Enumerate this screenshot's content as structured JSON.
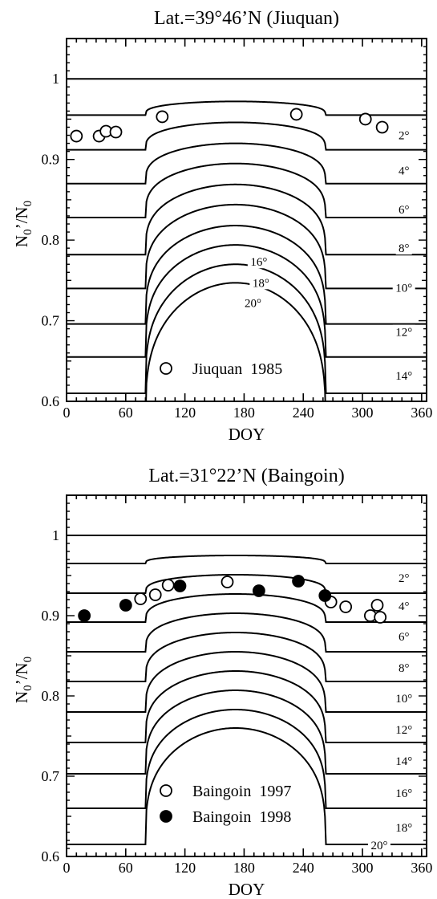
{
  "chart_data": [
    {
      "type": "line",
      "title": "Lat.=39°46’N  (Jiuquan)",
      "xlabel": "DOY",
      "ylabel": "N0’/N0",
      "ylabel_main": "N",
      "ylabel_sub1": "0",
      "ylabel_mid": "’/N",
      "ylabel_sub2": "0",
      "xlim": [
        0,
        365
      ],
      "ylim": [
        0.6,
        1.05
      ],
      "xticks": [
        0,
        60,
        120,
        180,
        240,
        300,
        360
      ],
      "xtick_labels": [
        "0",
        "60",
        "120",
        "180",
        "240",
        "300",
        "360"
      ],
      "yticks": [
        0.6,
        0.7,
        0.8,
        0.9,
        1
      ],
      "ytick_labels": [
        "0.6",
        "0.7",
        "0.8",
        "0.9",
        "1"
      ],
      "reference_line": 1.0,
      "curve_min_level": 0.6,
      "curve_params": [
        {
          "dip": 2,
          "plateau": 0.972,
          "winter": 0.955
        },
        {
          "dip": 4,
          "plateau": 0.946,
          "winter": 0.912
        },
        {
          "dip": 6,
          "plateau": 0.92,
          "winter": 0.87
        },
        {
          "dip": 8,
          "plateau": 0.895,
          "winter": 0.828
        },
        {
          "dip": 10,
          "plateau": 0.869,
          "winter": 0.782
        },
        {
          "dip": 12,
          "plateau": 0.844,
          "winter": 0.74
        },
        {
          "dip": 14,
          "plateau": 0.818,
          "winter": 0.696
        },
        {
          "dip": 16,
          "plateau": 0.794,
          "winter": 0.655
        },
        {
          "dip": 18,
          "plateau": 0.77,
          "winter": 0.61
        },
        {
          "dip": 20,
          "plateau": 0.747,
          "winter": 0.57
        }
      ],
      "curve_labels": [
        {
          "text": "2°",
          "x": 342,
          "y": 0.93
        },
        {
          "text": "4°",
          "x": 342,
          "y": 0.886
        },
        {
          "text": "6°",
          "x": 342,
          "y": 0.838
        },
        {
          "text": "8°",
          "x": 342,
          "y": 0.79
        },
        {
          "text": "10°",
          "x": 342,
          "y": 0.741
        },
        {
          "text": "12°",
          "x": 342,
          "y": 0.686
        },
        {
          "text": "14°",
          "x": 342,
          "y": 0.632
        },
        {
          "text": "16°",
          "x": 195,
          "y": 0.773
        },
        {
          "text": "18°",
          "x": 197,
          "y": 0.747
        },
        {
          "text": "20°",
          "x": 189,
          "y": 0.722
        }
      ],
      "series": [
        {
          "name": "Jiuquan  1985",
          "marker": "open-circle",
          "x": [
            10,
            33,
            40,
            50,
            97,
            233,
            303,
            320
          ],
          "y": [
            0.929,
            0.929,
            0.935,
            0.934,
            0.953,
            0.956,
            0.95,
            0.94
          ]
        }
      ],
      "legend": {
        "placement": "bottom-center"
      }
    },
    {
      "type": "line",
      "title": "Lat.=31°22’N  (Baingoin)",
      "xlabel": "DOY",
      "ylabel": "N0’/N0",
      "ylabel_main": "N",
      "ylabel_sub1": "0",
      "ylabel_mid": "’/N",
      "ylabel_sub2": "0",
      "xlim": [
        0,
        365
      ],
      "ylim": [
        0.6,
        1.05
      ],
      "xticks": [
        0,
        60,
        120,
        180,
        240,
        300,
        360
      ],
      "xtick_labels": [
        "0",
        "60",
        "120",
        "180",
        "240",
        "300",
        "360"
      ],
      "yticks": [
        0.6,
        0.7,
        0.8,
        0.9,
        1
      ],
      "ytick_labels": [
        "0.6",
        "0.7",
        "0.8",
        "0.9",
        "1"
      ],
      "reference_line": 1.0,
      "curve_min_level": 0.6,
      "curve_params": [
        {
          "dip": 2,
          "plateau": 0.975,
          "winter": 0.965
        },
        {
          "dip": 4,
          "plateau": 0.951,
          "winter": 0.928
        },
        {
          "dip": 6,
          "plateau": 0.927,
          "winter": 0.892
        },
        {
          "dip": 8,
          "plateau": 0.903,
          "winter": 0.855
        },
        {
          "dip": 10,
          "plateau": 0.879,
          "winter": 0.818
        },
        {
          "dip": 12,
          "plateau": 0.855,
          "winter": 0.78
        },
        {
          "dip": 14,
          "plateau": 0.831,
          "winter": 0.742
        },
        {
          "dip": 16,
          "plateau": 0.807,
          "winter": 0.703
        },
        {
          "dip": 18,
          "plateau": 0.783,
          "winter": 0.66
        },
        {
          "dip": 20,
          "plateau": 0.76,
          "winter": 0.615
        }
      ],
      "curve_labels": [
        {
          "text": "2°",
          "x": 342,
          "y": 0.947
        },
        {
          "text": "4°",
          "x": 342,
          "y": 0.912
        },
        {
          "text": "6°",
          "x": 342,
          "y": 0.874
        },
        {
          "text": "8°",
          "x": 342,
          "y": 0.835
        },
        {
          "text": "10°",
          "x": 342,
          "y": 0.797
        },
        {
          "text": "12°",
          "x": 342,
          "y": 0.758
        },
        {
          "text": "14°",
          "x": 342,
          "y": 0.719
        },
        {
          "text": "16°",
          "x": 342,
          "y": 0.679
        },
        {
          "text": "18°",
          "x": 342,
          "y": 0.636
        },
        {
          "text": "20°",
          "x": 317,
          "y": 0.614
        }
      ],
      "series": [
        {
          "name": "Baingoin  1997",
          "marker": "open-circle",
          "x": [
            75,
            90,
            103,
            163,
            268,
            283,
            308,
            315,
            318
          ],
          "y": [
            0.921,
            0.926,
            0.938,
            0.942,
            0.917,
            0.911,
            0.9,
            0.913,
            0.898
          ]
        },
        {
          "name": "Baingoin  1998",
          "marker": "filled-circle",
          "x": [
            18,
            60,
            115,
            195,
            235,
            262
          ],
          "y": [
            0.9,
            0.913,
            0.937,
            0.931,
            0.943,
            0.925
          ]
        }
      ],
      "legend": {
        "placement": "bottom-center"
      }
    }
  ]
}
